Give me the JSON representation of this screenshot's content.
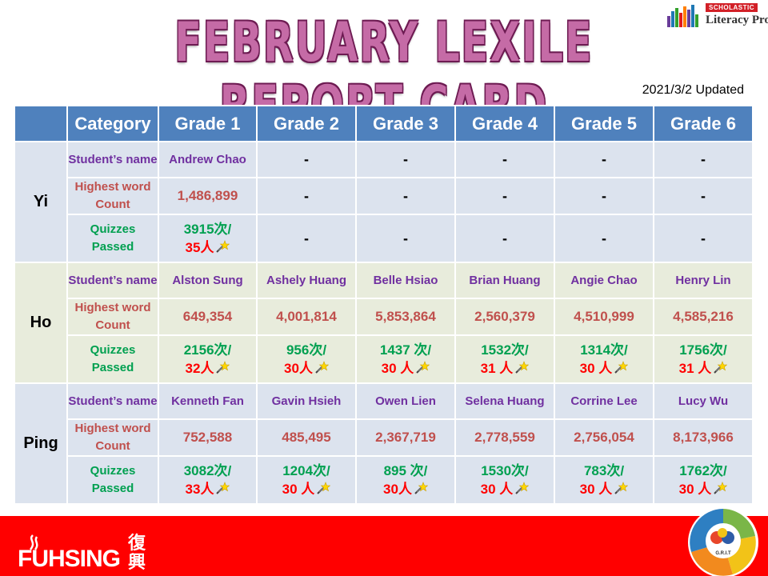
{
  "title": "FEBRUARY LEXILE REPORT CARD",
  "updated": "2021/3/2 Updated",
  "logo": {
    "badge": "SCHOLASTIC",
    "name": "Literacy Pro"
  },
  "table": {
    "headers": [
      "Category",
      "Grade 1",
      "Grade 2",
      "Grade 3",
      "Grade 4",
      "Grade 5",
      "Grade 6"
    ],
    "groups": [
      {
        "name": "Yi",
        "students_label": "Student’s name",
        "words_label": "Highest word Count",
        "quizzes_label": "Quizzes Passed",
        "students": [
          "Andrew Chao",
          "-",
          "-",
          "-",
          "-",
          "-"
        ],
        "words": [
          "1,486,899",
          "-",
          "-",
          "-",
          "-",
          "-"
        ],
        "quizzes": [
          {
            "times": "3915次/",
            "people": "35人"
          },
          {
            "text": "-"
          },
          {
            "text": "-"
          },
          {
            "text": "-"
          },
          {
            "text": "-"
          },
          {
            "text": "-"
          }
        ]
      },
      {
        "name": "Ho",
        "students_label": "Student’s name",
        "words_label": "Highest word Count",
        "quizzes_label": "Quizzes Passed",
        "students": [
          "Alston Sung",
          "Ashely Huang",
          "Belle Hsiao",
          "Brian Huang",
          "Angie Chao",
          "Henry Lin"
        ],
        "words": [
          "649,354",
          "4,001,814",
          "5,853,864",
          "2,560,379",
          "4,510,999",
          "4,585,216"
        ],
        "quizzes": [
          {
            "times": "2156次/",
            "people": "32人"
          },
          {
            "times": "956次/",
            "people": "30人"
          },
          {
            "times": "1437 次/",
            "people": "30 人"
          },
          {
            "times": "1532次/",
            "people": "31 人"
          },
          {
            "times": "1314次/",
            "people": "30 人"
          },
          {
            "times": "1756次/",
            "people": "31 人"
          }
        ]
      },
      {
        "name": "Ping",
        "students_label": "Student’s name",
        "words_label": "Highest word Count",
        "quizzes_label": "Quizzes Passed",
        "students": [
          "Kenneth Fan",
          "Gavin Hsieh",
          "Owen Lien",
          "Selena Huang",
          "Corrine Lee",
          "Lucy Wu"
        ],
        "words": [
          "752,588",
          "485,495",
          "2,367,719",
          "2,778,559",
          "2,756,054",
          "8,173,966"
        ],
        "quizzes": [
          {
            "times": "3082次/",
            "people": "33人"
          },
          {
            "times": "1204次/",
            "people": "30 人"
          },
          {
            "times": "895 次/",
            "people": "30人"
          },
          {
            "times": "1530次/",
            "people": "30 人"
          },
          {
            "times": "783次/",
            "people": "30 人"
          },
          {
            "times": "1762次/",
            "people": "30 人"
          }
        ]
      }
    ]
  },
  "footer": {
    "school": "FUHSING",
    "school_cn": "復興",
    "badge": "G.R.I.T"
  },
  "colors": {
    "header": "#4f81bd",
    "footer": "#ff0000",
    "title": "#c56ba6"
  }
}
